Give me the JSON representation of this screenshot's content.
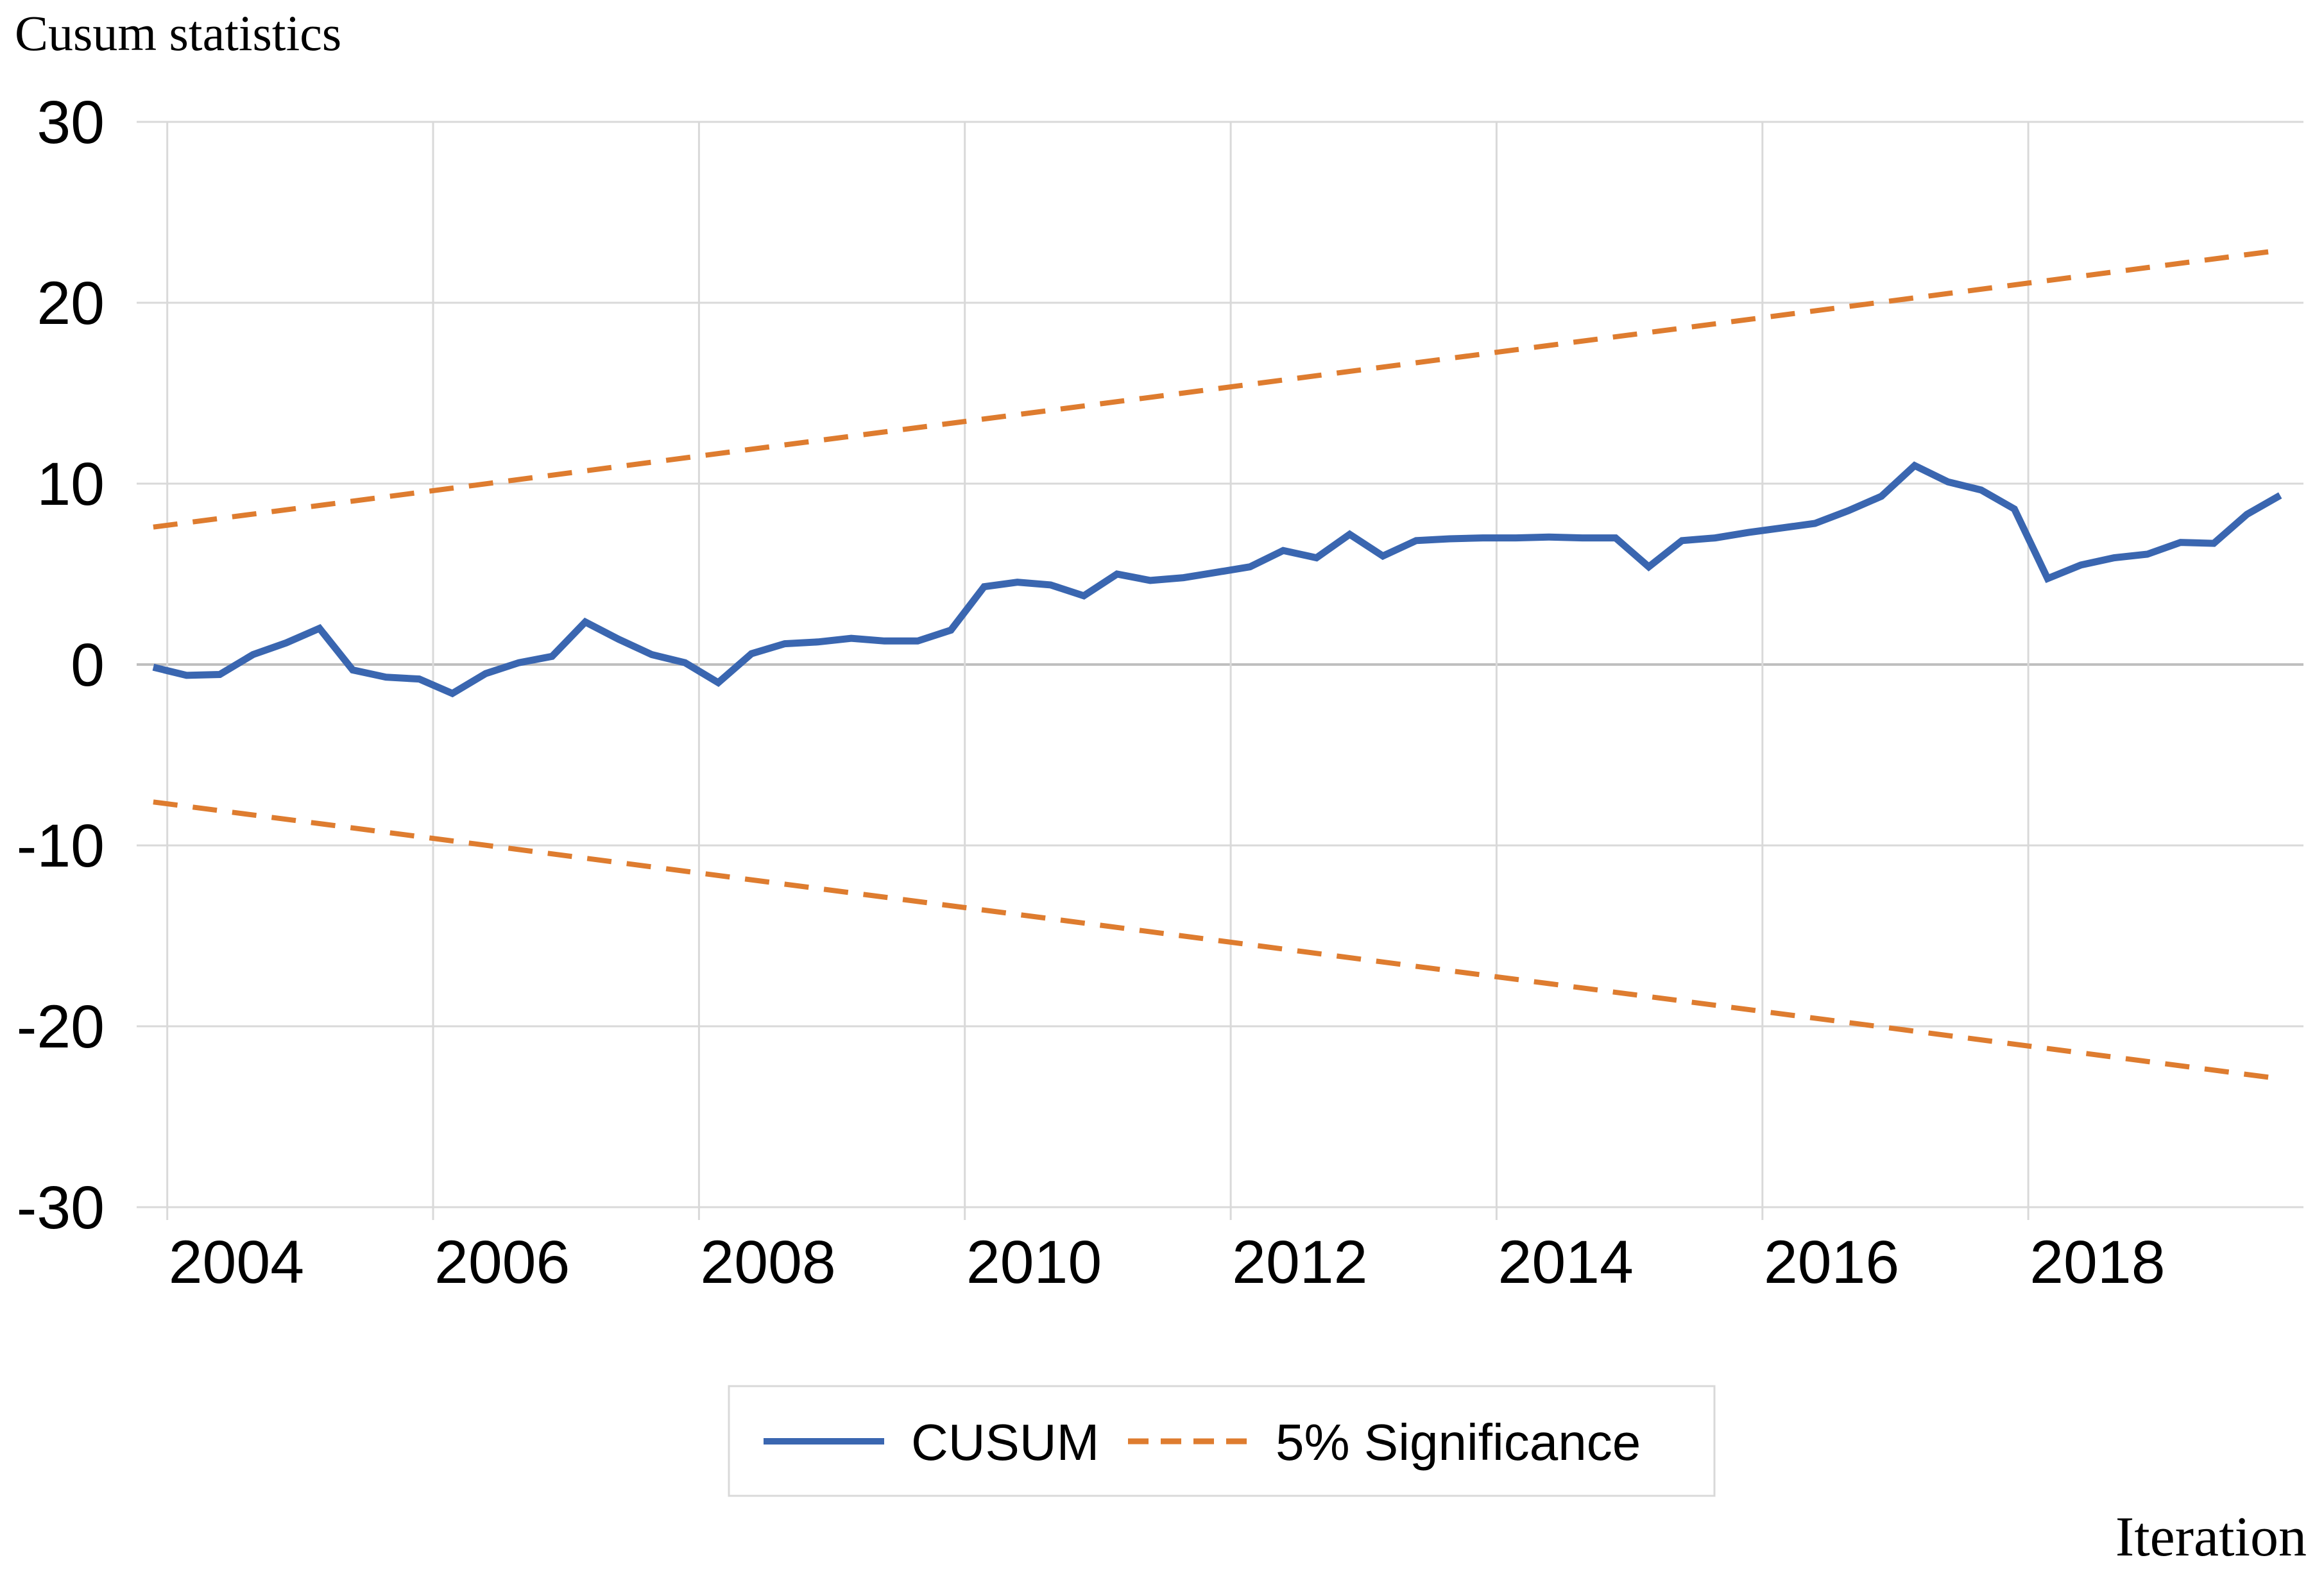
{
  "page": {
    "background": "#ffffff"
  },
  "titles": {
    "y_axis_title": "Cusum statistics",
    "x_axis_title": "Iteration"
  },
  "colors": {
    "cusum_line": "#3A66B0",
    "significance_line": "#DE7C2F",
    "gridline": "#D9D9D9",
    "zero_line": "#BFBFBF",
    "legend_border": "#D9D9D9",
    "text": "#000000",
    "background": "#FFFFFF"
  },
  "legend": {
    "items": [
      {
        "label": "CUSUM",
        "color": "#3A66B0",
        "line_style": "solid"
      },
      {
        "label": "5% Significance",
        "color": "#DE7C2F",
        "line_style": "dashed"
      }
    ]
  },
  "chart_data": {
    "type": "line",
    "title": "Cusum statistics",
    "xlabel": "Iteration",
    "ylabel": "Cusum statistics",
    "grid": true,
    "legend_position": "bottom",
    "xlim": [
      2003.25,
      2019.55
    ],
    "ylim": [
      -30,
      30
    ],
    "y_ticks": [
      30,
      20,
      10,
      0,
      -10,
      -20,
      -30
    ],
    "x_ticks": [
      {
        "label": "2004",
        "year": 2004
      },
      {
        "label": "2006",
        "year": 2006
      },
      {
        "label": "2008",
        "year": 2008
      },
      {
        "label": "2010",
        "year": 2010
      },
      {
        "label": "2012",
        "year": 2012
      },
      {
        "label": "2014",
        "year": 2014
      },
      {
        "label": "2016",
        "year": 2016
      },
      {
        "label": "2018",
        "year": 2018
      }
    ],
    "x_gridline_years": [
      2003.48,
      2005.48,
      2007.48,
      2009.48,
      2011.48,
      2013.48,
      2015.48,
      2017.48
    ],
    "series": [
      {
        "name": "CUSUM",
        "style": "solid",
        "color": "#3A66B0",
        "x": [
          2003.375,
          2003.625,
          2003.875,
          2004.125,
          2004.375,
          2004.625,
          2004.875,
          2005.125,
          2005.375,
          2005.625,
          2005.875,
          2006.125,
          2006.375,
          2006.625,
          2006.875,
          2007.125,
          2007.375,
          2007.625,
          2007.875,
          2008.125,
          2008.375,
          2008.625,
          2008.875,
          2009.125,
          2009.375,
          2009.625,
          2009.875,
          2010.125,
          2010.375,
          2010.625,
          2010.875,
          2011.125,
          2011.375,
          2011.625,
          2011.875,
          2012.125,
          2012.375,
          2012.625,
          2012.875,
          2013.125,
          2013.375,
          2013.625,
          2013.875,
          2014.125,
          2014.375,
          2014.625,
          2014.875,
          2015.125,
          2015.375,
          2015.625,
          2015.875,
          2016.125,
          2016.375,
          2016.625,
          2016.875,
          2017.125,
          2017.375,
          2017.625,
          2017.875,
          2018.125,
          2018.375,
          2018.625,
          2018.875,
          2019.125,
          2019.375
        ],
        "y": [
          -0.15,
          -0.6,
          -0.55,
          0.55,
          1.2,
          2.0,
          -0.3,
          -0.7,
          -0.8,
          -1.6,
          -0.5,
          0.1,
          0.45,
          2.35,
          1.4,
          0.55,
          0.1,
          -1.0,
          0.6,
          1.15,
          1.25,
          1.45,
          1.3,
          1.3,
          1.9,
          4.3,
          4.55,
          4.4,
          3.8,
          5.0,
          4.65,
          4.8,
          5.1,
          5.4,
          6.3,
          5.9,
          7.2,
          6.0,
          6.85,
          6.95,
          7.0,
          7.0,
          7.05,
          7.0,
          7.0,
          5.4,
          6.85,
          7.0,
          7.3,
          7.55,
          7.8,
          8.5,
          9.3,
          11.0,
          10.1,
          9.65,
          8.6,
          4.75,
          5.5,
          5.9,
          6.1,
          6.75,
          6.7,
          8.3,
          9.35
        ]
      },
      {
        "name": "5% Significance (upper)",
        "style": "dashed",
        "color": "#DE7C2F",
        "x": [
          2003.375,
          2019.375
        ],
        "y": [
          7.6,
          22.9
        ]
      },
      {
        "name": "5% Significance (lower)",
        "style": "dashed",
        "color": "#DE7C2F",
        "x": [
          2003.375,
          2019.375
        ],
        "y": [
          -7.6,
          -22.9
        ]
      }
    ]
  }
}
